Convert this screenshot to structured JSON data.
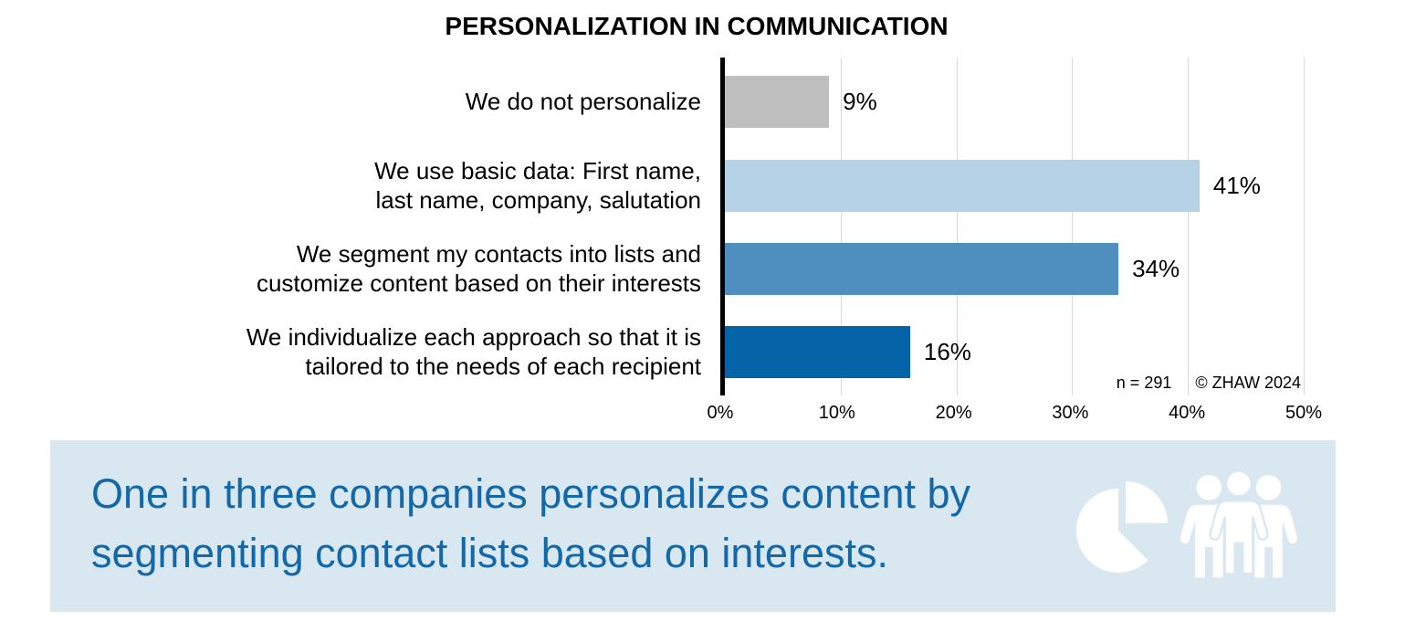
{
  "title": "PERSONALIZATION IN COMMUNICATION",
  "chart_data": {
    "type": "bar",
    "orientation": "horizontal",
    "title": "PERSONALIZATION IN COMMUNICATION",
    "categories": [
      "We do not personalize",
      "We use basic data: First name, last name, company, salutation",
      "We segment my contacts into lists and customize content based on their interests",
      "We individualize each approach so that it is tailored to the needs of each recipient"
    ],
    "category_lines": [
      [
        "We do not personalize"
      ],
      [
        "We use basic data: First name,",
        "last name, company, salutation"
      ],
      [
        "We segment my contacts into lists and",
        "customize content based on their interests"
      ],
      [
        "We individualize each approach so that it is",
        "tailored to the needs of each recipient"
      ]
    ],
    "values": [
      9,
      41,
      34,
      16
    ],
    "value_labels": [
      "9%",
      "41%",
      "34%",
      "16%"
    ],
    "bar_colors": [
      "#bfbfbf",
      "#b5d2e7",
      "#4e8fc0",
      "#0564a8"
    ],
    "xlim": [
      0,
      50
    ],
    "x_ticks": [
      "0%",
      "10%",
      "20%",
      "30%",
      "40%",
      "50%"
    ],
    "grid": "vertical-gridlines-every-10pct",
    "legend": "none",
    "sample_note": "n = 291",
    "copyright_note": "© ZHAW 2024"
  },
  "insight_banner": {
    "lines": [
      "One in three companies personalizes content by",
      "segmenting contact lists based on interests."
    ],
    "full_text": "One in three companies personalizes content by segmenting contact lists based on interests.",
    "background_color": "#d9e7f1",
    "text_color": "#1268a9",
    "icon_color": "#ffffff",
    "icons": [
      "pie-chart-icon",
      "people-group-icon"
    ]
  }
}
